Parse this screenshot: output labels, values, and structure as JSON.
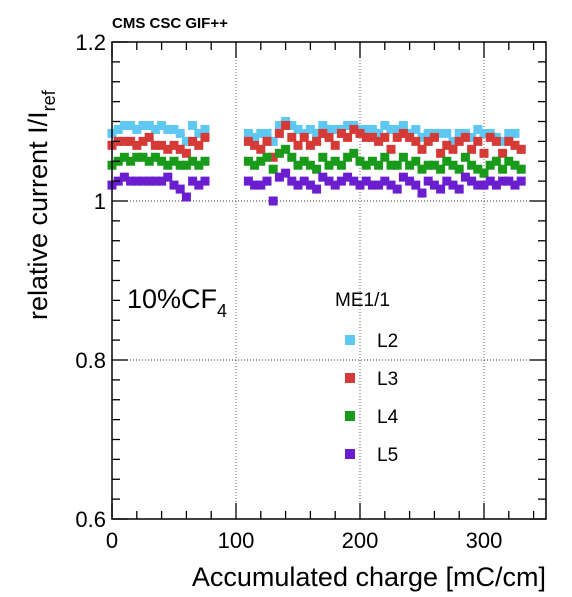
{
  "header": {
    "experiment_label": "CMS CSC GIF++"
  },
  "annotation": {
    "gas_text": "10%CF",
    "gas_subscript": "4"
  },
  "legend": {
    "title": "ME1/1",
    "placement": "center"
  },
  "chart_data": {
    "type": "scatter",
    "xlabel": "Accumulated charge [mC/cm]",
    "ylabel_main": "relative current I/I",
    "ylabel_sub": "ref",
    "xlim": [
      0,
      350
    ],
    "ylim": [
      0.6,
      1.2
    ],
    "x_ticks": [
      "0",
      "100",
      "200",
      "300"
    ],
    "y_ticks": [
      "0.6",
      "0.8",
      "1",
      "1.2"
    ],
    "y_tick_values": [
      0.6,
      0.8,
      1.0,
      1.2
    ],
    "x_tick_values": [
      0,
      100,
      200,
      300
    ],
    "grid": true,
    "x": [
      0,
      5,
      10,
      15,
      20,
      25,
      30,
      35,
      40,
      45,
      50,
      55,
      60,
      65,
      70,
      75,
      110,
      115,
      120,
      125,
      130,
      135,
      140,
      145,
      150,
      155,
      160,
      165,
      170,
      175,
      180,
      185,
      190,
      195,
      200,
      205,
      210,
      215,
      220,
      225,
      230,
      235,
      240,
      245,
      250,
      255,
      260,
      265,
      270,
      275,
      280,
      285,
      290,
      295,
      300,
      305,
      310,
      315,
      320,
      325,
      330
    ],
    "series": [
      {
        "name": "L2",
        "color": "#5ec8f2",
        "values": [
          1.085,
          1.09,
          1.095,
          1.095,
          1.09,
          1.095,
          1.095,
          1.09,
          1.095,
          1.09,
          1.09,
          1.085,
          1.075,
          1.095,
          1.085,
          1.09,
          1.085,
          1.08,
          1.085,
          1.085,
          1.075,
          1.095,
          1.1,
          1.095,
          1.09,
          1.085,
          1.09,
          1.085,
          1.095,
          1.09,
          1.09,
          1.09,
          1.095,
          1.095,
          1.09,
          1.09,
          1.09,
          1.085,
          1.095,
          1.09,
          1.09,
          1.095,
          1.085,
          1.09,
          1.08,
          1.085,
          1.085,
          1.085,
          1.085,
          1.075,
          1.085,
          1.085,
          1.08,
          1.09,
          1.085,
          1.085,
          1.08,
          1.075,
          1.085,
          1.085,
          1.065
        ]
      },
      {
        "name": "L3",
        "color": "#d63a36",
        "values": [
          1.07,
          1.075,
          1.075,
          1.075,
          1.07,
          1.075,
          1.08,
          1.07,
          1.07,
          1.065,
          1.07,
          1.065,
          1.06,
          1.075,
          1.07,
          1.08,
          1.075,
          1.07,
          1.065,
          1.075,
          1.055,
          1.085,
          1.095,
          1.08,
          1.07,
          1.08,
          1.07,
          1.075,
          1.085,
          1.08,
          1.07,
          1.085,
          1.08,
          1.09,
          1.085,
          1.08,
          1.08,
          1.075,
          1.08,
          1.065,
          1.08,
          1.085,
          1.08,
          1.075,
          1.065,
          1.075,
          1.08,
          1.06,
          1.07,
          1.065,
          1.075,
          1.08,
          1.065,
          1.075,
          1.06,
          1.08,
          1.075,
          1.06,
          1.075,
          1.07,
          1.065
        ]
      },
      {
        "name": "L4",
        "color": "#1a9a1a",
        "values": [
          1.045,
          1.05,
          1.055,
          1.05,
          1.055,
          1.055,
          1.05,
          1.055,
          1.05,
          1.045,
          1.05,
          1.045,
          1.045,
          1.05,
          1.045,
          1.05,
          1.05,
          1.045,
          1.05,
          1.055,
          1.04,
          1.06,
          1.065,
          1.055,
          1.045,
          1.05,
          1.045,
          1.04,
          1.055,
          1.045,
          1.05,
          1.045,
          1.055,
          1.06,
          1.05,
          1.045,
          1.05,
          1.045,
          1.055,
          1.045,
          1.045,
          1.055,
          1.045,
          1.05,
          1.04,
          1.045,
          1.045,
          1.04,
          1.05,
          1.045,
          1.04,
          1.055,
          1.045,
          1.04,
          1.035,
          1.045,
          1.05,
          1.04,
          1.05,
          1.045,
          1.04
        ]
      },
      {
        "name": "L5",
        "color": "#6a1ed0",
        "values": [
          1.02,
          1.025,
          1.03,
          1.025,
          1.025,
          1.025,
          1.025,
          1.025,
          1.025,
          1.03,
          1.02,
          1.015,
          1.005,
          1.025,
          1.02,
          1.025,
          1.025,
          1.02,
          1.02,
          1.025,
          1.0,
          1.03,
          1.035,
          1.025,
          1.02,
          1.025,
          1.02,
          1.015,
          1.03,
          1.025,
          1.02,
          1.025,
          1.03,
          1.025,
          1.02,
          1.025,
          1.02,
          1.02,
          1.025,
          1.02,
          1.015,
          1.03,
          1.025,
          1.02,
          1.01,
          1.025,
          1.02,
          1.015,
          1.025,
          1.02,
          1.015,
          1.03,
          1.025,
          1.02,
          1.02,
          1.025,
          1.02,
          1.025,
          1.025,
          1.02,
          1.025
        ]
      }
    ]
  }
}
